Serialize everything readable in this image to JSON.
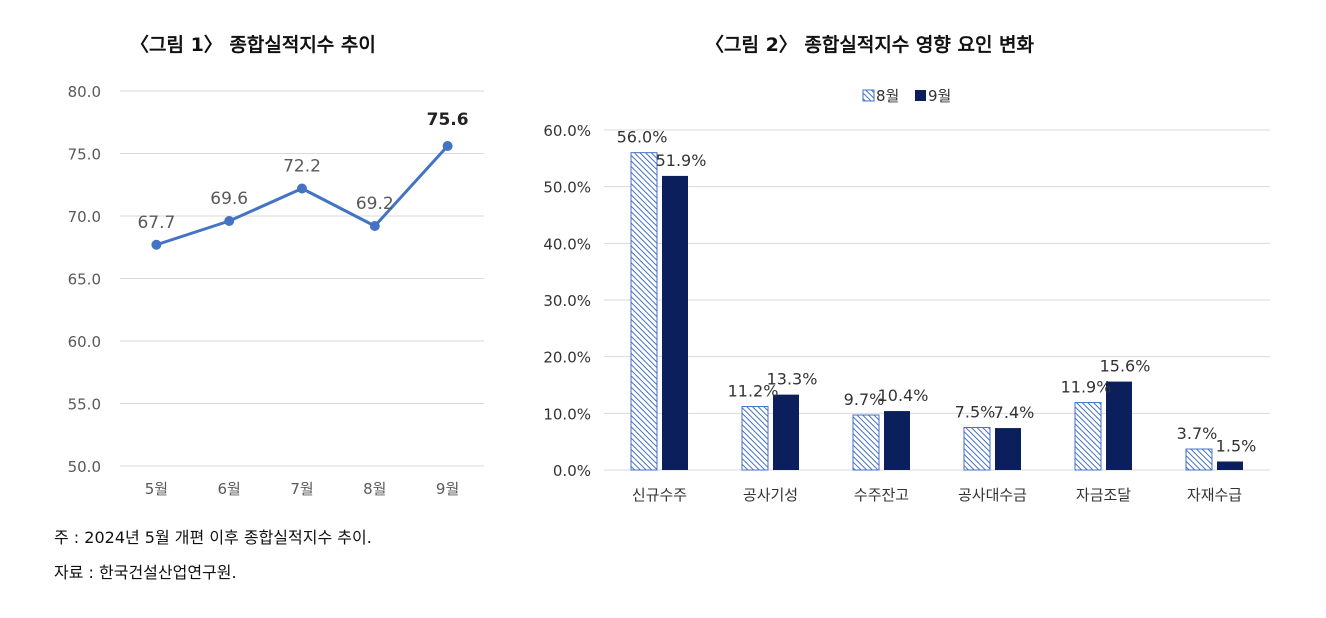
{
  "chart_data": [
    {
      "type": "line",
      "title": "〈그림 1〉 종합실적지수 추이",
      "categories": [
        "5월",
        "6월",
        "7월",
        "8월",
        "9월"
      ],
      "series": [
        {
          "values": [
            67.7,
            69.6,
            72.2,
            69.2,
            75.6
          ]
        }
      ],
      "data_labels": [
        "67.7",
        "69.6",
        "72.2",
        "69.2",
        "75.6"
      ],
      "y_ticks": [
        "50.0",
        "55.0",
        "60.0",
        "65.0",
        "70.0",
        "75.0",
        "80.0"
      ],
      "ylim": [
        50,
        80
      ],
      "grid": true,
      "colors": {
        "line": "#4472c4",
        "grid": "#d9d9d9",
        "text": "#595959"
      }
    },
    {
      "type": "bar",
      "title": "〈그림 2〉 종합실적지수 영향 요인 변화",
      "categories": [
        "신규수주",
        "공사기성",
        "수주잔고",
        "공사대수금",
        "자금조달",
        "자재수급"
      ],
      "series": [
        {
          "name": "8월",
          "values": [
            56.0,
            11.2,
            9.7,
            7.5,
            11.9,
            3.7
          ],
          "labels": [
            "56.0%",
            "11.2%",
            "9.7%",
            "7.5%",
            "11.9%",
            "3.7%"
          ],
          "pattern": "diagonal-hatch",
          "color": "#4472c4"
        },
        {
          "name": "9월",
          "values": [
            51.9,
            13.3,
            10.4,
            7.4,
            15.6,
            1.5
          ],
          "labels": [
            "51.9%",
            "13.3%",
            "10.4%",
            "7.4%",
            "15.6%",
            "1.5%"
          ],
          "color": "#0b1f5c"
        }
      ],
      "y_ticks": [
        "0.0%",
        "10.0%",
        "20.0%",
        "30.0%",
        "40.0%",
        "50.0%",
        "60.0%"
      ],
      "ylim": [
        0,
        60
      ],
      "grid": true,
      "legend": "top-center"
    }
  ],
  "notes": {
    "note": "주 : 2024년 5월 개편 이후 종합실적지수 추이.",
    "source": "자료 : 한국건설산업연구원."
  }
}
